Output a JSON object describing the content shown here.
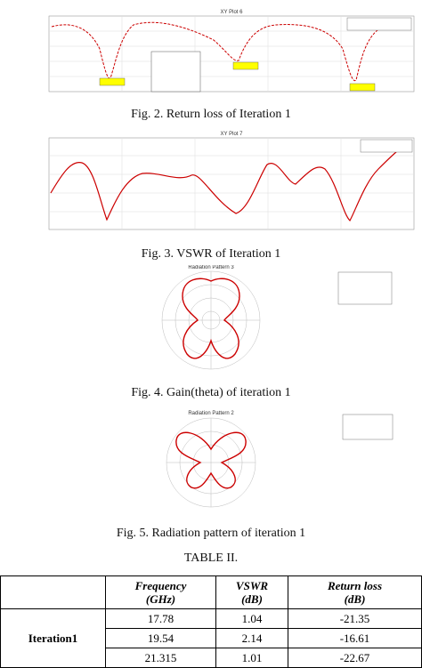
{
  "figures": [
    {
      "plot_title": "XY Plot 6",
      "caption": "Fig. 2. Return loss of Iteration 1"
    },
    {
      "plot_title": "XY Plot 7",
      "caption": "Fig. 3. VSWR  of Iteration 1"
    },
    {
      "plot_title": "Radiation Pattern 3",
      "caption": "Fig. 4. Gain(theta) of iteration 1"
    },
    {
      "plot_title": "Radiation Pattern 2",
      "caption": "Fig. 5. Radiation pattern of iteration 1"
    }
  ],
  "table": {
    "title": "TABLE II.",
    "header": [
      {
        "name": "Frequency",
        "unit": "(GHz)"
      },
      {
        "name": "VSWR",
        "unit": "(dB)"
      },
      {
        "name": "Return loss",
        "unit": "(dB)"
      }
    ],
    "row_label": "Iteration1",
    "rows": [
      [
        17.78,
        1.04,
        -21.35
      ],
      [
        19.54,
        2.14,
        -16.61
      ],
      [
        21.315,
        1.01,
        -22.67
      ]
    ]
  }
}
